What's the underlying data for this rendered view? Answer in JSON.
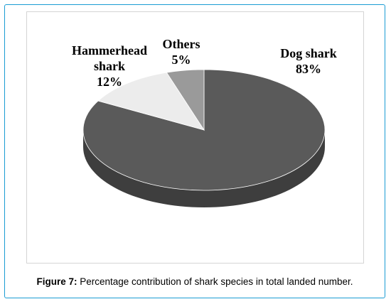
{
  "figure": {
    "caption_label": "Figure 7:",
    "caption_text": " Percentage contribution of shark species in total landed number."
  },
  "chart_data": {
    "type": "pie",
    "title": "",
    "start_angle_deg": 0,
    "direction": "clockwise",
    "slices": [
      {
        "key": "dog",
        "label_line1": "Dog shark",
        "label_line2": "",
        "percent_label": "83%",
        "value": 83,
        "color": "#5a5a5a",
        "side_color": "#3e3e3e"
      },
      {
        "key": "hammerhead",
        "label_line1": "Hammerhead",
        "label_line2": "shark",
        "percent_label": "12%",
        "value": 12,
        "color": "#ececec",
        "side_color": "#cfcfcf"
      },
      {
        "key": "others",
        "label_line1": "Others",
        "label_line2": "",
        "percent_label": "5%",
        "value": 5,
        "color": "#9a9a9a",
        "side_color": "#7a7a7a"
      }
    ]
  },
  "colors": {
    "frame_border": "#1a9cd4",
    "chart_border": "#d4d4d4"
  }
}
